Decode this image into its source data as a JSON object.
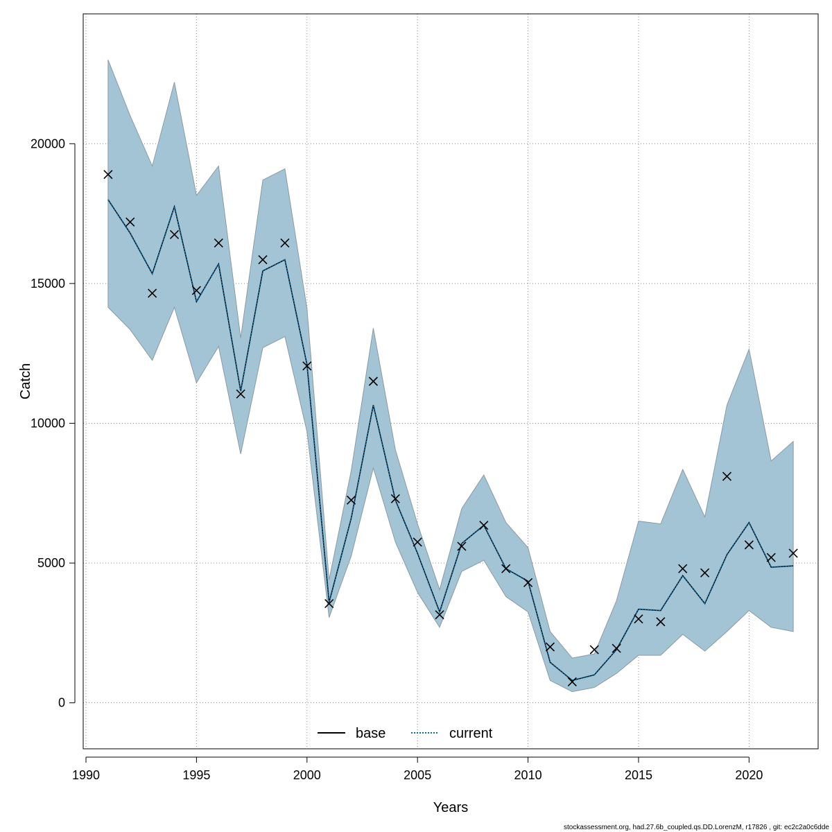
{
  "chart_data": {
    "type": "line",
    "xlabel": "Years",
    "ylabel": "Catch",
    "xlim": [
      1990,
      2023
    ],
    "ylim": [
      -1000,
      24000
    ],
    "x_ticks": [
      1990,
      1995,
      2000,
      2005,
      2010,
      2015,
      2020
    ],
    "y_ticks": [
      0,
      5000,
      10000,
      15000,
      20000
    ],
    "grid": true,
    "legend_position": "bottom-center",
    "years": [
      1991,
      1992,
      1993,
      1994,
      1995,
      1996,
      1997,
      1998,
      1999,
      2000,
      2001,
      2002,
      2003,
      2004,
      2005,
      2006,
      2007,
      2008,
      2009,
      2010,
      2011,
      2012,
      2013,
      2014,
      2015,
      2016,
      2017,
      2018,
      2019,
      2020,
      2021,
      2022
    ],
    "observed": [
      18900,
      17200,
      14650,
      16750,
      14750,
      16450,
      11050,
      15850,
      16450,
      12050,
      3550,
      7250,
      11500,
      7300,
      5750,
      3150,
      5600,
      6350,
      4800,
      4300,
      2000,
      750,
      1900,
      1950,
      3000,
      2900,
      4800,
      4650,
      8100,
      5650,
      5200,
      5350
    ],
    "series": [
      {
        "name": "base",
        "line": "solid",
        "color": "#000000",
        "values": [
          18000,
          16800,
          15350,
          17750,
          14350,
          15700,
          11150,
          15450,
          15850,
          12100,
          3600,
          6600,
          10650,
          7250,
          5350,
          3250,
          5700,
          6350,
          4800,
          4350,
          1450,
          800,
          1000,
          1900,
          3350,
          3300,
          4550,
          3550,
          5300,
          6450,
          4850,
          4900
        ]
      },
      {
        "name": "current",
        "line": "dotted",
        "color": "#0a6a9e",
        "values": [
          18000,
          16800,
          15350,
          17750,
          14350,
          15700,
          11150,
          15450,
          15850,
          12100,
          3600,
          6600,
          10650,
          7250,
          5350,
          3250,
          5700,
          6350,
          4800,
          4350,
          1450,
          800,
          1000,
          1900,
          3350,
          3300,
          4550,
          3550,
          5300,
          6450,
          4850,
          4900
        ]
      }
    ],
    "band": {
      "upper": [
        23000,
        21000,
        19200,
        22200,
        18150,
        19200,
        13050,
        18700,
        19100,
        14100,
        4400,
        8300,
        13400,
        9050,
        6400,
        4050,
        6950,
        8150,
        6450,
        5550,
        2550,
        1600,
        1750,
        3650,
        6500,
        6400,
        8350,
        6650,
        10650,
        12650,
        8650,
        9350
      ],
      "lower": [
        14150,
        13350,
        12250,
        14150,
        11450,
        12750,
        8900,
        12700,
        13100,
        9700,
        3050,
        5250,
        8400,
        5750,
        3950,
        2700,
        4700,
        5100,
        3800,
        3250,
        800,
        400,
        550,
        1050,
        1700,
        1700,
        2450,
        1850,
        2550,
        3300,
        2700,
        2550
      ],
      "fill": "#a3c4d4",
      "stroke": "#8a9aa3"
    },
    "colors": {
      "grid": "#888888",
      "marker": "#000000"
    }
  },
  "footer_text": "stockassessment.org, had.27.6b_coupled.qs.DD.LorenzM, r17826 , git: ec2c2a0c6dde"
}
